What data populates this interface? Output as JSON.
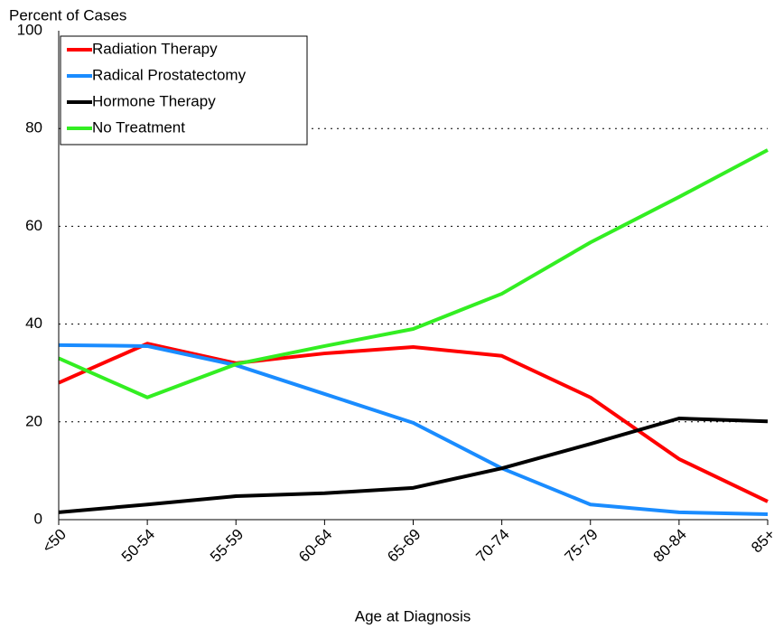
{
  "chart_data": {
    "type": "line",
    "y_axis_label": "Percent of Cases",
    "x_axis_label": "Age at Diagnosis",
    "categories": [
      "<50",
      "50-54",
      "55-59",
      "60-64",
      "65-69",
      "70-74",
      "75-79",
      "80-84",
      "85+"
    ],
    "series": [
      {
        "name": "Radiation Therapy",
        "color": "#ff0000",
        "values": [
          28,
          36,
          32,
          34,
          35.3,
          33.5,
          25,
          12.4,
          3.7
        ]
      },
      {
        "name": "Radical Prostatectomy",
        "color": "#1a8cff",
        "values": [
          35.7,
          35.5,
          31.6,
          25.7,
          19.8,
          10.5,
          3.1,
          1.5,
          1.1
        ]
      },
      {
        "name": "Hormone Therapy",
        "color": "#000000",
        "values": [
          1.5,
          3.1,
          4.8,
          5.4,
          6.5,
          10.5,
          15.5,
          20.7,
          20.1
        ]
      },
      {
        "name": "No Treatment",
        "color": "#33ee22",
        "values": [
          33,
          25,
          31.8,
          35.5,
          39,
          46.2,
          56.7,
          66,
          75.6
        ]
      }
    ],
    "ylim": [
      0,
      100
    ],
    "yticks": [
      0,
      20,
      40,
      60,
      80,
      100
    ],
    "grid": true,
    "legend": "upper left"
  }
}
